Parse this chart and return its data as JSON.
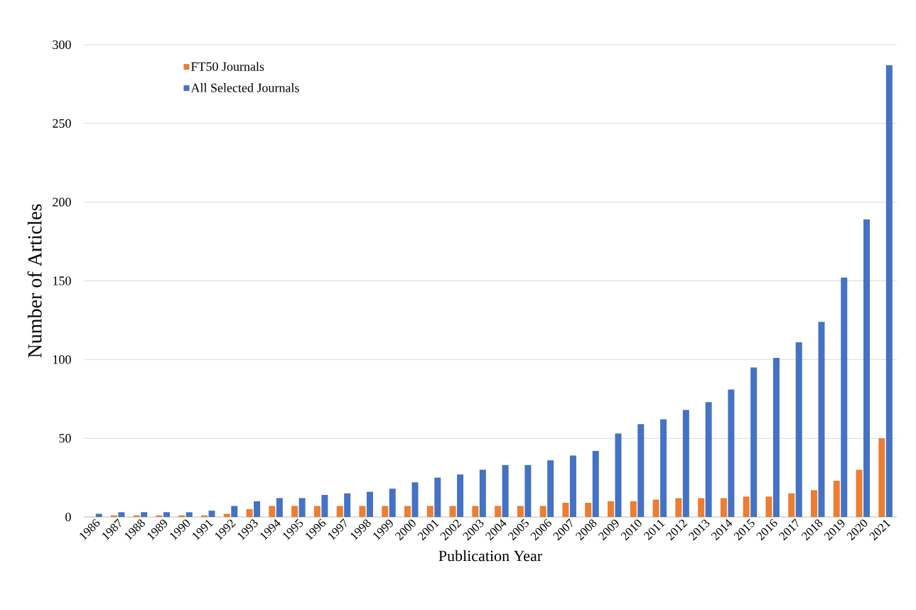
{
  "chart_data": {
    "type": "bar",
    "xlabel": "Publication Year",
    "ylabel": "Number of Articles",
    "categories": [
      "1986",
      "1987",
      "1988",
      "1989",
      "1990",
      "1991",
      "1992",
      "1993",
      "1994",
      "1995",
      "1996",
      "1997",
      "1998",
      "1999",
      "2000",
      "2001",
      "2002",
      "2003",
      "2004",
      "2005",
      "2006",
      "2007",
      "2008",
      "2009",
      "2010",
      "2011",
      "2012",
      "2013",
      "2014",
      "2015",
      "2016",
      "2017",
      "2018",
      "2019",
      "2020",
      "2021"
    ],
    "series": [
      {
        "name": "FT50 Journals",
        "color": "#ed7d31",
        "values": [
          0,
          1,
          1,
          1,
          1,
          1,
          2,
          5,
          7,
          7,
          7,
          7,
          7,
          7,
          7,
          7,
          7,
          7,
          7,
          7,
          7,
          9,
          9,
          10,
          10,
          11,
          12,
          12,
          12,
          13,
          13,
          15,
          17,
          23,
          30,
          50
        ]
      },
      {
        "name": "All Selected Journals",
        "color": "#4472c4",
        "values": [
          2,
          3,
          3,
          3,
          3,
          4,
          7,
          10,
          12,
          12,
          14,
          15,
          16,
          18,
          22,
          25,
          27,
          30,
          33,
          33,
          36,
          39,
          42,
          53,
          59,
          62,
          68,
          73,
          81,
          95,
          101,
          111,
          124,
          152,
          189,
          287
        ]
      }
    ],
    "ylim": [
      0,
      300
    ],
    "yticks": [
      0,
      50,
      100,
      150,
      200,
      250,
      300
    ],
    "grid": "y",
    "legend": "top left"
  }
}
